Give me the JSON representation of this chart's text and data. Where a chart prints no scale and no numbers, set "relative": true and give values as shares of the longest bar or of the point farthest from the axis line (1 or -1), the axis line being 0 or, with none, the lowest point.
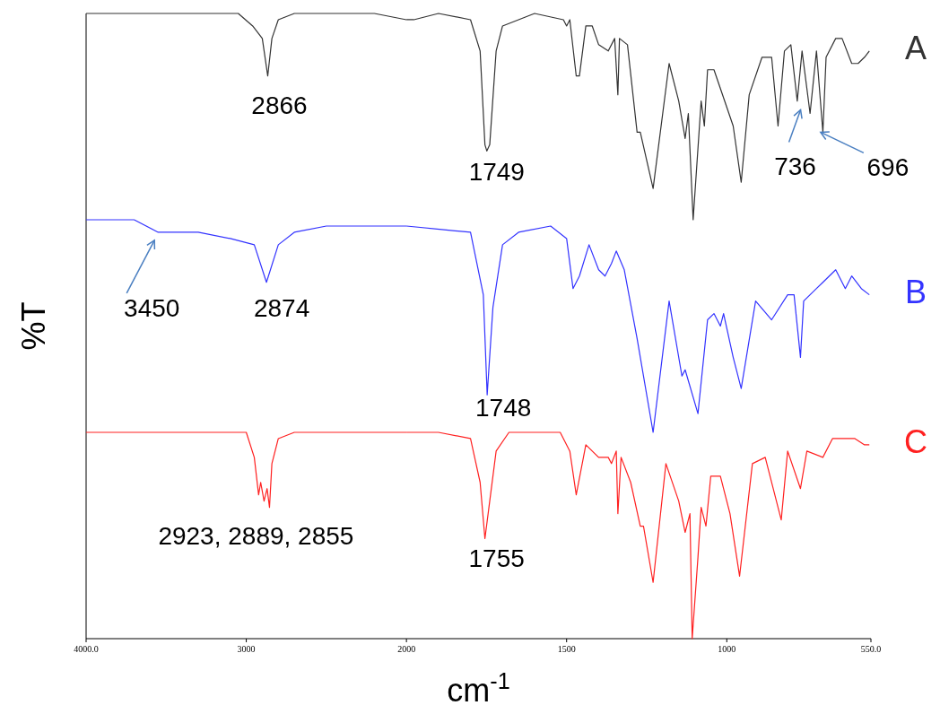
{
  "chart_data": [
    {
      "type": "line",
      "relative": true,
      "ylabel": "%T",
      "legend": false,
      "tick_labels": "x",
      "xlim": [
        4000,
        2000
      ],
      "xticks": [
        {
          "value": 4000,
          "label": "4000.0"
        },
        3000,
        2000
      ],
      "series": [
        {
          "color": "#333333",
          "x": [
            4000,
            3500,
            3200,
            3050,
            2960,
            2930,
            2900,
            2866,
            2840,
            2800,
            2700,
            2500,
            2200,
            2000
          ],
          "values": [
            1.0,
            1.0,
            1.0,
            1.0,
            0.98,
            0.97,
            0.96,
            0.9,
            0.96,
            0.99,
            1.0,
            1.0,
            1.0,
            0.99
          ]
        },
        {
          "color": "#3333ff",
          "x": [
            4000,
            3700,
            3550,
            3450,
            3300,
            3100,
            2950,
            2874,
            2800,
            2700,
            2500,
            2300,
            2100,
            2000
          ],
          "values": [
            0.67,
            0.67,
            0.65,
            0.65,
            0.65,
            0.64,
            0.63,
            0.57,
            0.63,
            0.65,
            0.66,
            0.66,
            0.66,
            0.66
          ]
        },
        {
          "color": "#ff2020",
          "x": [
            4000,
            3100,
            3000,
            2950,
            2923,
            2910,
            2889,
            2870,
            2855,
            2840,
            2800,
            2700,
            2300,
            2030,
            2000
          ],
          "values": [
            0.33,
            0.33,
            0.33,
            0.29,
            0.23,
            0.25,
            0.22,
            0.24,
            0.21,
            0.28,
            0.32,
            0.33,
            0.33,
            0.33,
            0.33
          ]
        }
      ],
      "annotations": [
        {
          "text": "2866",
          "x": 2866,
          "y": 0.9
        },
        {
          "text": "3450",
          "x": 3450,
          "y": 0.65
        },
        {
          "text": "2874",
          "x": 2874,
          "y": 0.57
        },
        {
          "text": "2923, 2889, 2855",
          "x": 2889,
          "y": 0.22
        }
      ]
    },
    {
      "type": "line",
      "relative": true,
      "xlabel": "cm$^{-1}$",
      "legend": false,
      "tick_labels": "x",
      "xlim": [
        2000,
        550
      ],
      "xticks": [
        1500,
        1000,
        {
          "value": 550,
          "label": "550.0"
        }
      ],
      "series": [
        {
          "name": "A",
          "color": "#333333",
          "x": [
            2000,
            1977,
            1900,
            1800,
            1770,
            1755,
            1749,
            1740,
            1720,
            1700,
            1650,
            1600,
            1510,
            1500,
            1490,
            1470,
            1460,
            1440,
            1420,
            1400,
            1370,
            1350,
            1340,
            1335,
            1310,
            1280,
            1270,
            1230,
            1180,
            1150,
            1130,
            1120,
            1105,
            1080,
            1070,
            1060,
            1040,
            1000,
            980,
            955,
            930,
            890,
            860,
            840,
            820,
            800,
            780,
            765,
            740,
            720,
            700,
            690,
            660,
            640,
            610,
            590,
            570,
            555
          ],
          "values": [
            0.99,
            0.99,
            1.0,
            0.99,
            0.94,
            0.79,
            0.78,
            0.79,
            0.94,
            0.98,
            0.99,
            1.0,
            0.99,
            0.98,
            0.99,
            0.9,
            0.9,
            0.98,
            0.98,
            0.95,
            0.94,
            0.96,
            0.87,
            0.96,
            0.95,
            0.81,
            0.81,
            0.72,
            0.92,
            0.86,
            0.8,
            0.84,
            0.67,
            0.86,
            0.82,
            0.91,
            0.91,
            0.85,
            0.82,
            0.73,
            0.87,
            0.93,
            0.93,
            0.82,
            0.94,
            0.95,
            0.86,
            0.94,
            0.84,
            0.94,
            0.81,
            0.93,
            0.96,
            0.96,
            0.92,
            0.92,
            0.93,
            0.94
          ]
        },
        {
          "name": "B",
          "color": "#3333ff",
          "x": [
            2000,
            1800,
            1760,
            1748,
            1730,
            1700,
            1650,
            1550,
            1500,
            1480,
            1460,
            1430,
            1400,
            1380,
            1360,
            1345,
            1320,
            1280,
            1230,
            1180,
            1140,
            1130,
            1090,
            1060,
            1040,
            1020,
            1010,
            980,
            955,
            910,
            860,
            810,
            790,
            770,
            760,
            720,
            700,
            660,
            630,
            610,
            580,
            555
          ],
          "values": [
            0.66,
            0.65,
            0.55,
            0.39,
            0.53,
            0.63,
            0.65,
            0.66,
            0.64,
            0.56,
            0.58,
            0.63,
            0.59,
            0.58,
            0.6,
            0.62,
            0.59,
            0.48,
            0.33,
            0.54,
            0.42,
            0.43,
            0.36,
            0.51,
            0.52,
            0.5,
            0.52,
            0.45,
            0.4,
            0.54,
            0.51,
            0.55,
            0.55,
            0.45,
            0.54,
            0.56,
            0.57,
            0.59,
            0.56,
            0.58,
            0.56,
            0.55
          ]
        },
        {
          "name": "C",
          "color": "#ff2020",
          "x": [
            2000,
            1900,
            1800,
            1770,
            1755,
            1740,
            1720,
            1680,
            1520,
            1490,
            1470,
            1440,
            1400,
            1370,
            1360,
            1345,
            1340,
            1330,
            1300,
            1270,
            1260,
            1230,
            1190,
            1150,
            1130,
            1115,
            1108,
            1090,
            1080,
            1065,
            1050,
            1020,
            990,
            960,
            920,
            880,
            830,
            810,
            770,
            750,
            700,
            670,
            600,
            570,
            555
          ],
          "values": [
            0.33,
            0.33,
            0.32,
            0.25,
            0.16,
            0.22,
            0.3,
            0.33,
            0.33,
            0.3,
            0.23,
            0.31,
            0.29,
            0.29,
            0.28,
            0.3,
            0.2,
            0.29,
            0.25,
            0.18,
            0.18,
            0.09,
            0.28,
            0.22,
            0.17,
            0.2,
            0.0,
            0.13,
            0.21,
            0.18,
            0.26,
            0.26,
            0.2,
            0.1,
            0.28,
            0.29,
            0.19,
            0.3,
            0.24,
            0.3,
            0.29,
            0.32,
            0.32,
            0.31,
            0.31
          ]
        }
      ],
      "annotations": [
        {
          "text": "1749",
          "x": 1749,
          "y": 0.78
        },
        {
          "text": "736",
          "x": 736,
          "y": 0.84
        },
        {
          "text": "696",
          "x": 696,
          "y": 0.81
        },
        {
          "text": "1748",
          "x": 1748,
          "y": 0.39
        },
        {
          "text": "1755",
          "x": 1755,
          "y": 0.16
        }
      ]
    }
  ]
}
